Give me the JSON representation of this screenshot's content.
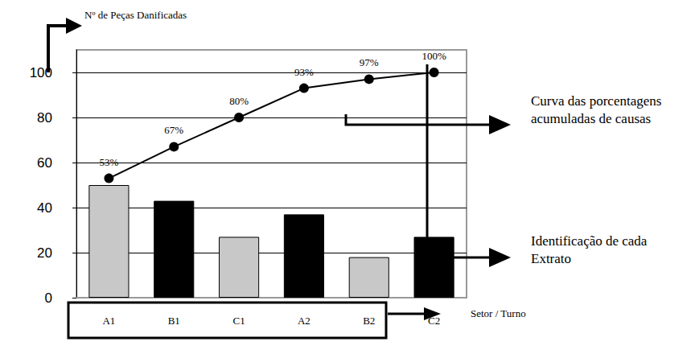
{
  "chart_data": {
    "type": "bar",
    "y_label": "Nº de Peças Danificadas",
    "x_label": "Setor / Turno",
    "categories": [
      "A1",
      "B1",
      "C1",
      "A2",
      "B2",
      "C2"
    ],
    "values": [
      50,
      43,
      27,
      37,
      18,
      27
    ],
    "colors": [
      "#c8c8c8",
      "#000000",
      "#c8c8c8",
      "#000000",
      "#c8c8c8",
      "#000000"
    ],
    "cumulative": {
      "type": "line",
      "color": "#000000",
      "marker": "circle",
      "values": [
        53,
        67,
        80,
        93,
        97,
        100
      ],
      "value_labels": [
        "53%",
        "67%",
        "80%",
        "93%",
        "97%",
        "100%"
      ]
    },
    "annotations": [
      "Curva das porcentagens acumuladas de causas",
      "Identificação de cada Extrato"
    ],
    "ylim": [
      0,
      110
    ],
    "yticks": [
      0,
      20,
      40,
      60,
      80,
      100
    ],
    "grid": true
  }
}
